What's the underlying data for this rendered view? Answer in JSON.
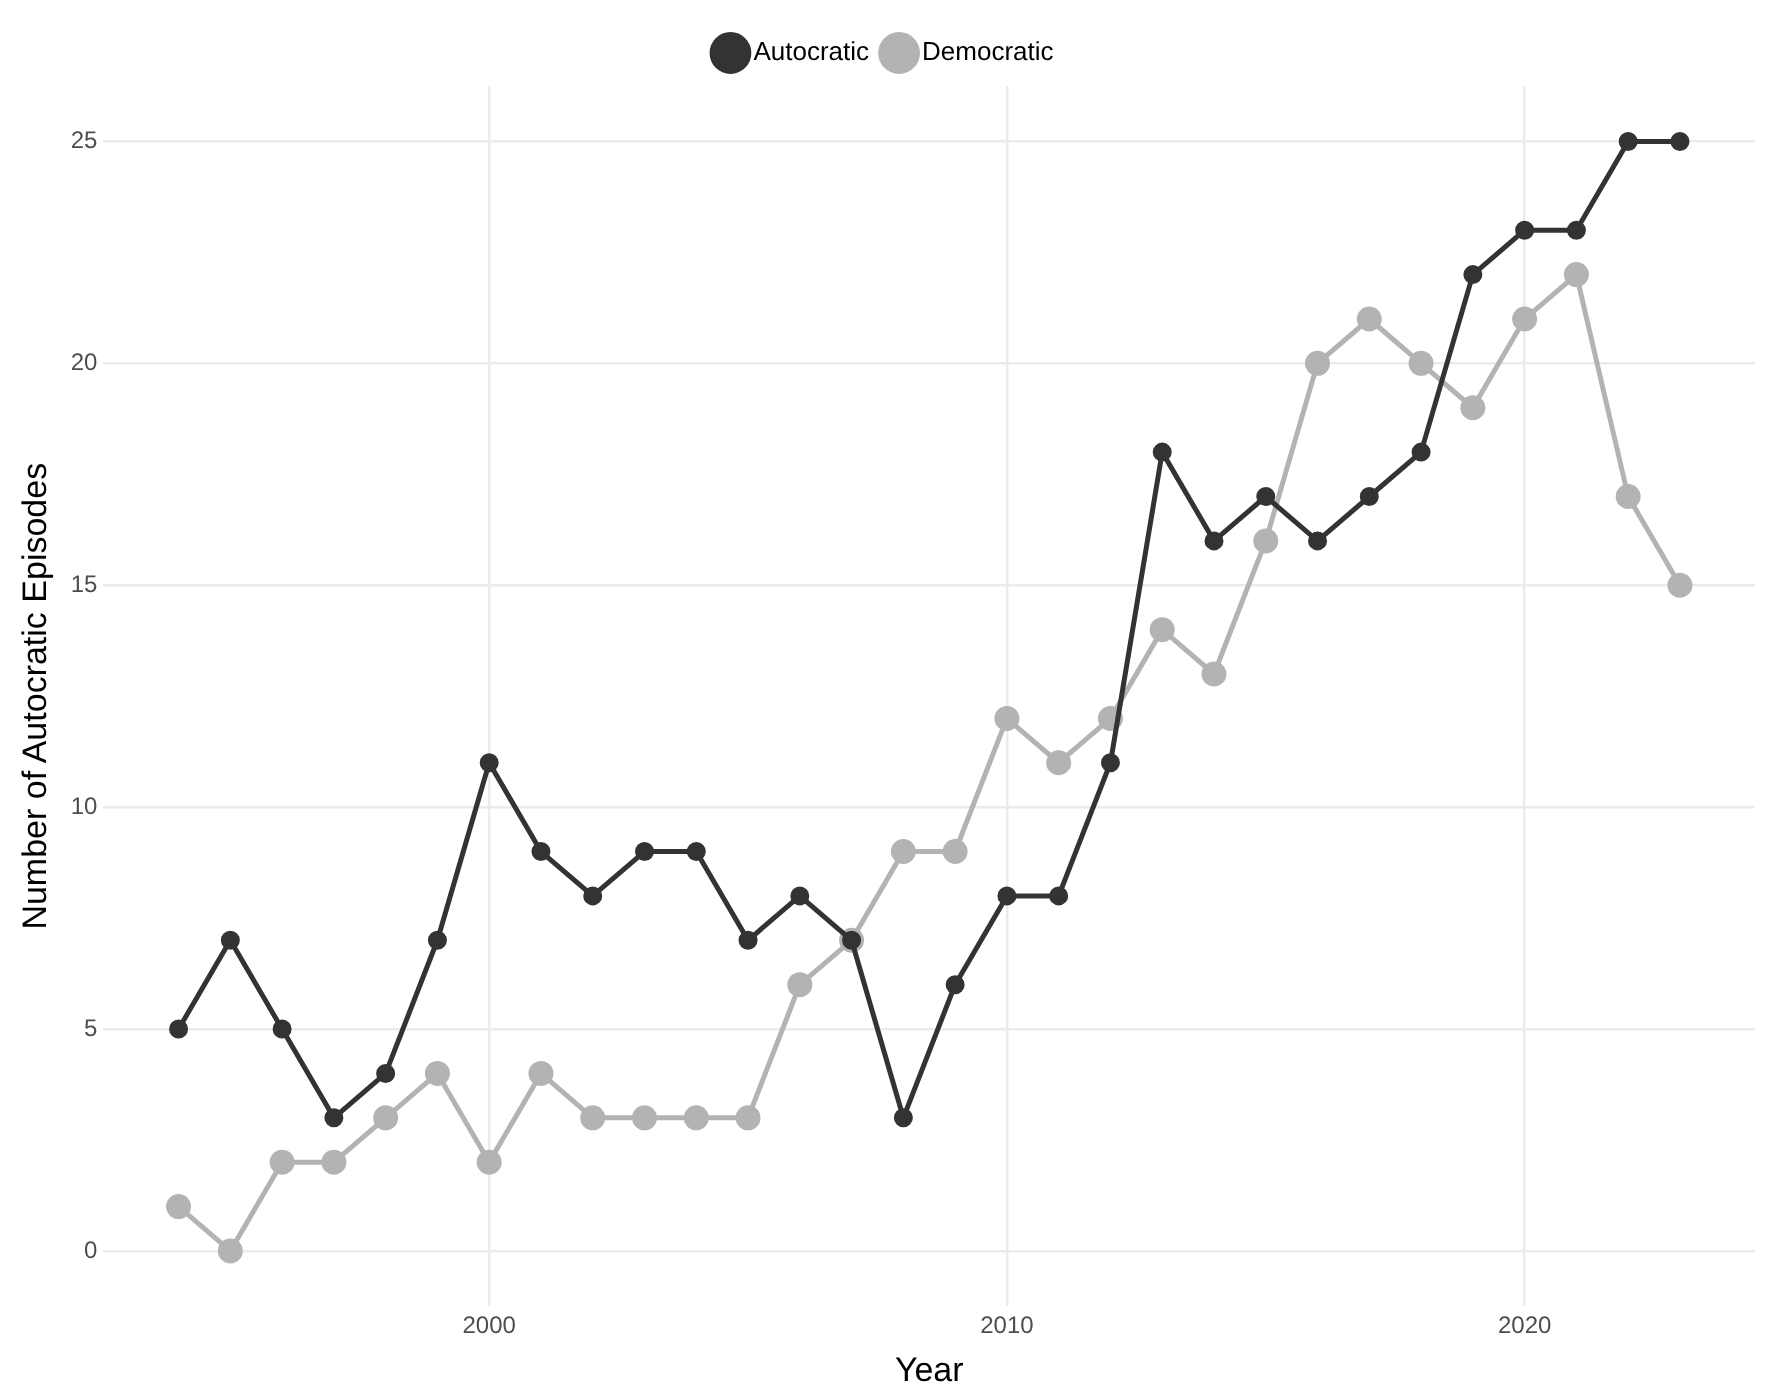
{
  "chart_data": {
    "type": "line",
    "xlabel": "Year",
    "ylabel": "Number of Autocratic Episodes",
    "x": [
      1994,
      1995,
      1996,
      1997,
      1998,
      1999,
      2000,
      2001,
      2002,
      2003,
      2004,
      2005,
      2006,
      2007,
      2008,
      2009,
      2010,
      2011,
      2012,
      2013,
      2014,
      2015,
      2016,
      2017,
      2018,
      2019,
      2020,
      2021,
      2022,
      2023
    ],
    "series": [
      {
        "name": "Autocratic",
        "color": "#333333",
        "values": [
          5,
          7,
          5,
          3,
          4,
          7,
          11,
          9,
          8,
          9,
          9,
          7,
          8,
          7,
          3,
          6,
          8,
          8,
          11,
          18,
          16,
          17,
          16,
          17,
          18,
          22,
          23,
          23,
          25,
          25
        ]
      },
      {
        "name": "Democratic",
        "color": "#b3b3b3",
        "values": [
          1,
          0,
          2,
          2,
          3,
          4,
          2,
          4,
          3,
          3,
          3,
          3,
          6,
          7,
          9,
          9,
          12,
          11,
          12,
          14,
          13,
          16,
          20,
          21,
          20,
          19,
          21,
          22,
          17,
          15
        ]
      }
    ],
    "xlim": [
      1992.55,
      2024.45
    ],
    "xticks": [
      2000,
      2010,
      2020
    ],
    "ylim": [
      -1.25,
      26.25
    ],
    "yticks": [
      0,
      5,
      10,
      15,
      20,
      25
    ],
    "grid": true,
    "legend": "top",
    "marker": "circle",
    "line_style": "solid"
  }
}
